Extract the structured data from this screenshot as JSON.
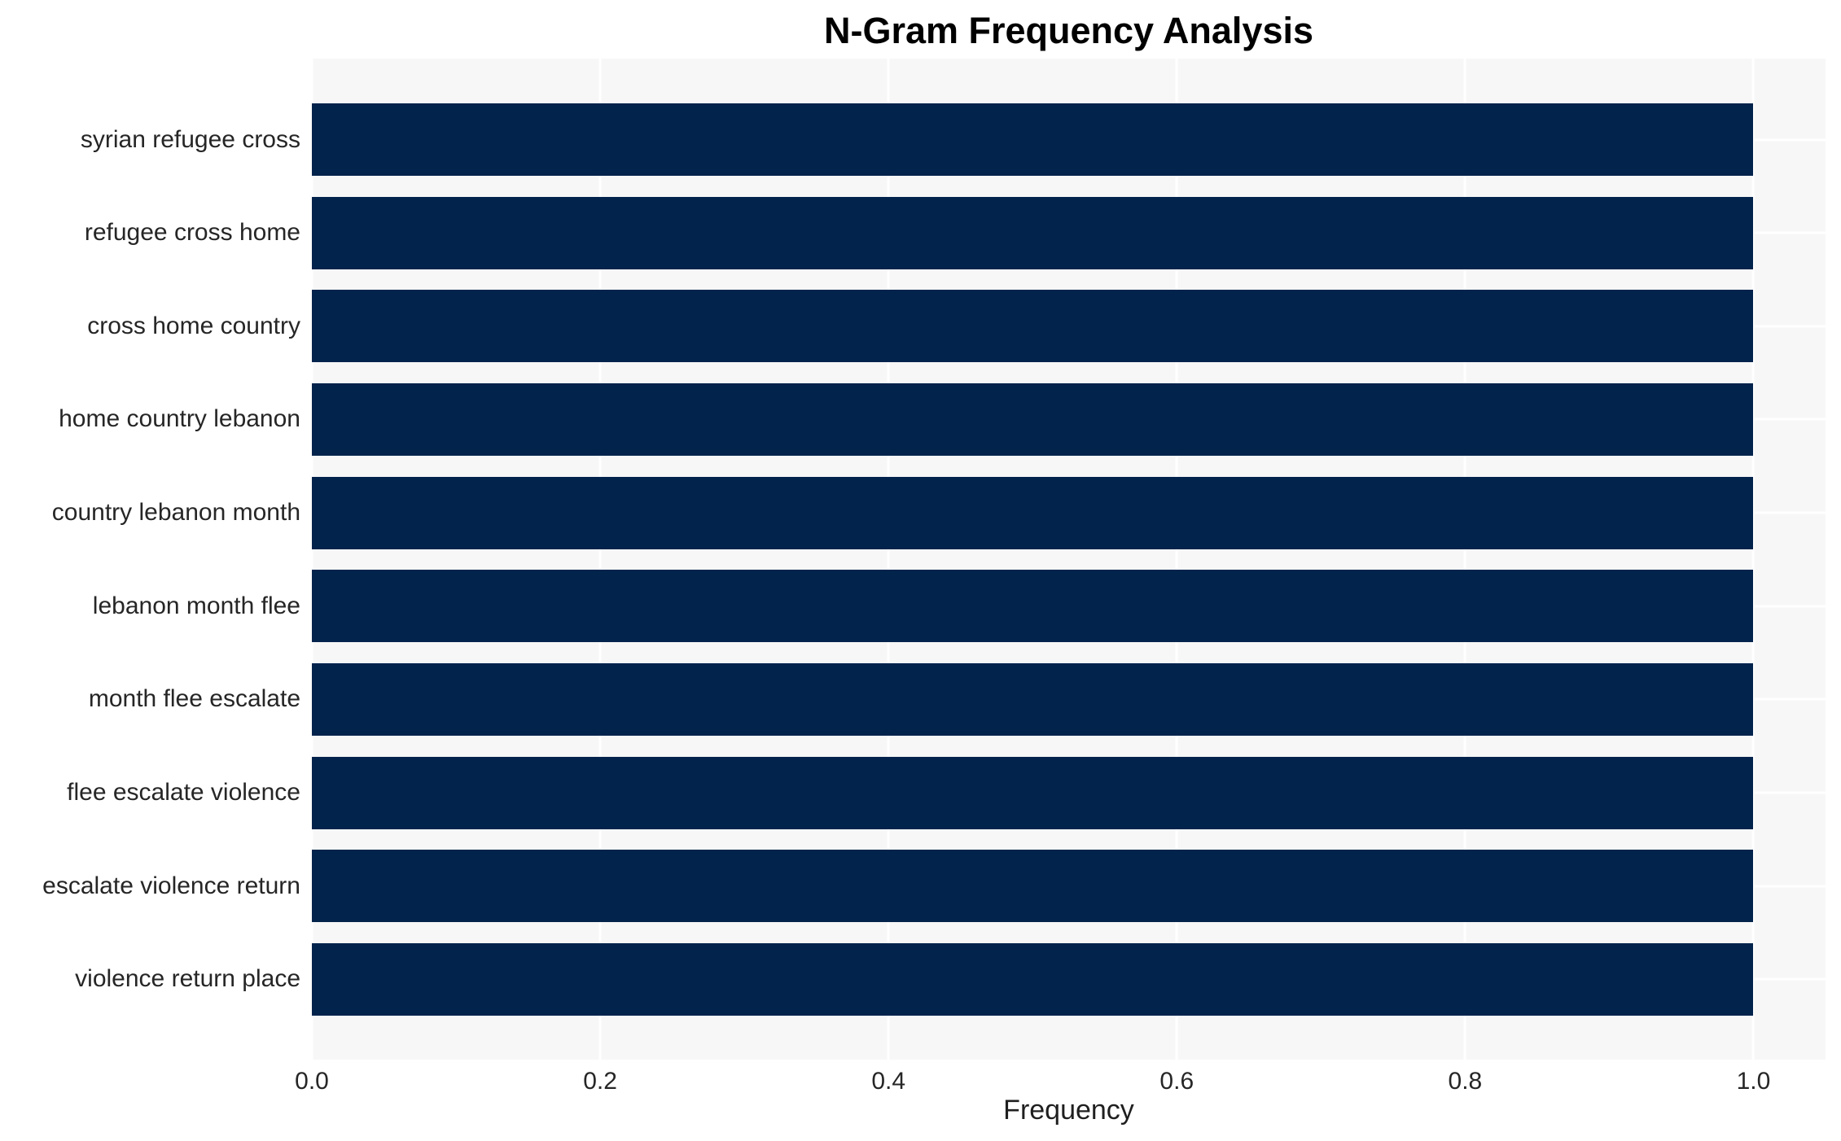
{
  "title": "N-Gram Frequency Analysis",
  "chart_data": {
    "type": "bar",
    "orientation": "horizontal",
    "title": "N-Gram Frequency Analysis",
    "categories": [
      "syrian refugee cross",
      "refugee cross home",
      "cross home country",
      "home country lebanon",
      "country lebanon month",
      "lebanon month flee",
      "month flee escalate",
      "flee escalate violence",
      "escalate violence return",
      "violence return place"
    ],
    "values": [
      1.0,
      1.0,
      1.0,
      1.0,
      1.0,
      1.0,
      1.0,
      1.0,
      1.0,
      1.0
    ],
    "xlabel": "Frequency",
    "ylabel": "",
    "xlim": [
      0,
      1.05
    ],
    "x_ticks": [
      "0.0",
      "0.2",
      "0.4",
      "0.6",
      "0.8",
      "1.0"
    ],
    "grid": true,
    "legend": false,
    "colors": {
      "bar": "#02234c",
      "plot_bg": "#f7f7f7",
      "gridline": "#ffffff",
      "title_text": "#000000",
      "tick_text": "#262626",
      "axis_label_text": "#1f1f1f",
      "page_bg": "#ffffff"
    }
  }
}
